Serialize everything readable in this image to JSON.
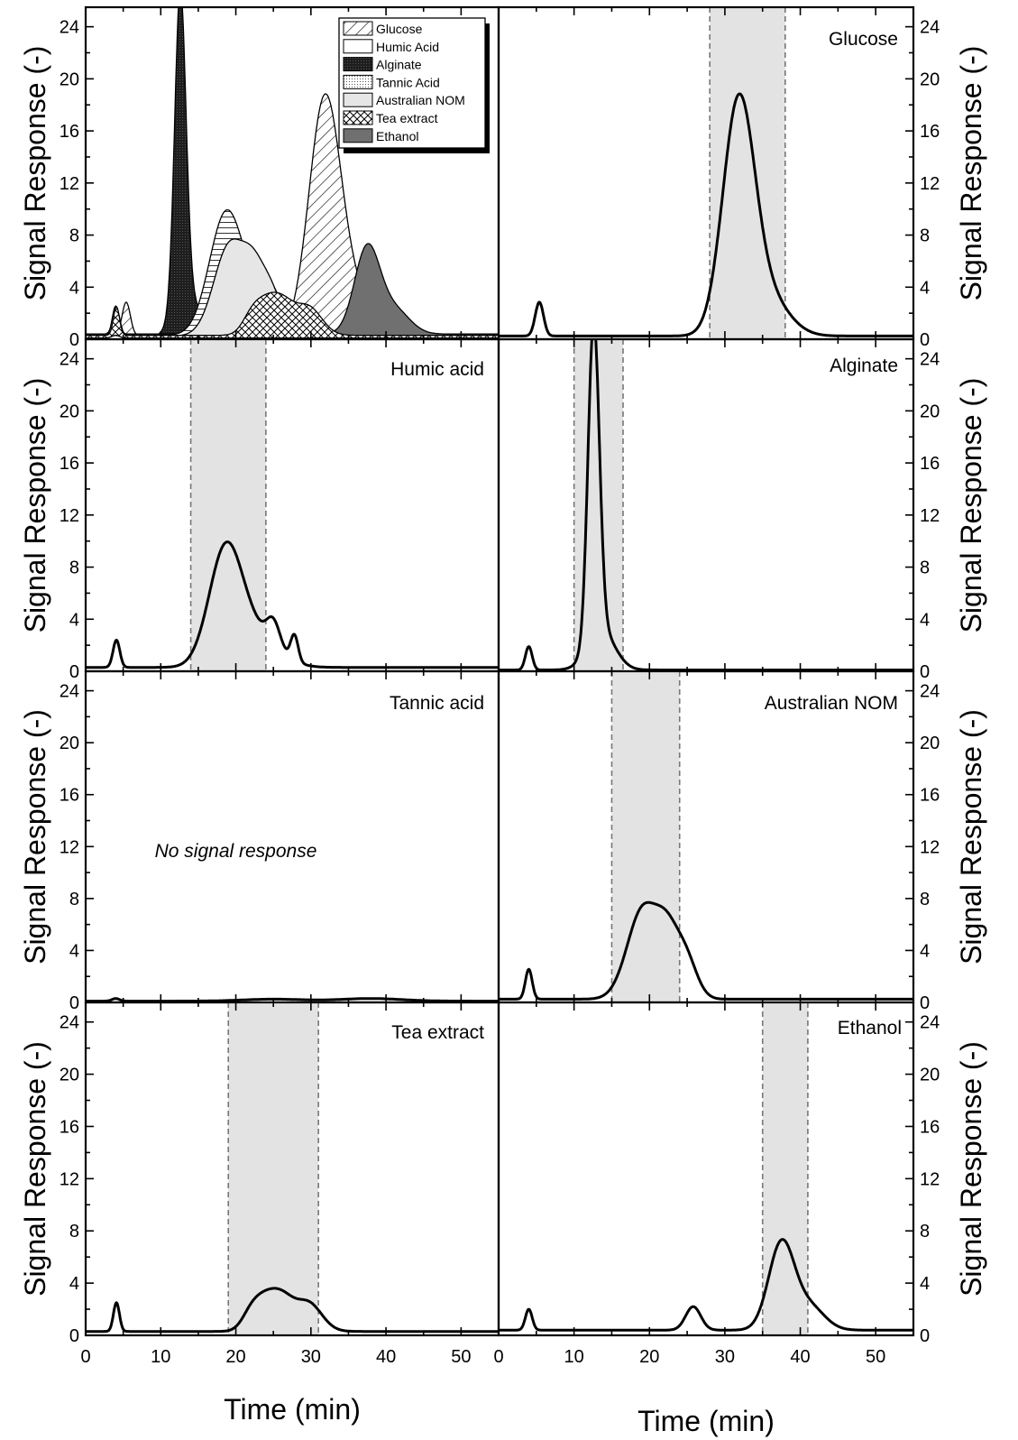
{
  "axes": {
    "y_title": "Signal Response (-)",
    "x_title": "Time (min)",
    "x_ticks": [
      "0",
      "10",
      "20",
      "30",
      "40",
      "50"
    ],
    "y_ticks": [
      "0",
      "4",
      "8",
      "12",
      "16",
      "20",
      "24"
    ]
  },
  "chart_data": [
    {
      "type": "area",
      "panel": "overlay",
      "xlim": [
        0,
        55
      ],
      "ylim": [
        0,
        25.5
      ],
      "legend_position": "top-right",
      "legend": [
        "Glucose",
        "Humic Acid",
        "Alginate",
        "Tannic Acid",
        "Australian NOM",
        "Tea extract",
        "Ethanol"
      ],
      "series": [
        {
          "name": "Glucose",
          "peaks": [
            [
              5.4,
              2.6,
              0.55
            ],
            [
              31.8,
              17.3,
              2.1
            ],
            [
              35.5,
              3.0,
              2.8
            ]
          ],
          "baseline": 0.25
        },
        {
          "name": "Humic Acid",
          "peaks": [
            [
              4.1,
              2.1,
              0.45
            ],
            [
              18.6,
              8.5,
              2.2
            ],
            [
              22.5,
              2.5,
              3.0
            ],
            [
              25.0,
              1.9,
              0.9
            ],
            [
              27.8,
              2.0,
              0.5
            ]
          ],
          "baseline": 0.3
        },
        {
          "name": "Alginate",
          "peaks": [
            [
              4.0,
              1.8,
              0.45
            ],
            [
              12.6,
              24.3,
              0.75
            ],
            [
              13.6,
              3.0,
              1.8
            ]
          ],
          "baseline": 0.1
        },
        {
          "name": "Tannic Acid",
          "peaks": [
            [
              4.0,
              0.2,
              0.5
            ]
          ],
          "baseline": 0.1
        },
        {
          "name": "Australian NOM",
          "peaks": [
            [
              4.0,
              2.3,
              0.45
            ],
            [
              19.2,
              7.0,
              2.1
            ],
            [
              22.3,
              3.5,
              1.4
            ],
            [
              24.7,
              3.3,
              1.5
            ]
          ],
          "baseline": 0.25
        },
        {
          "name": "Tea extract",
          "peaks": [
            [
              4.1,
              2.2,
              0.4
            ],
            [
              24.2,
              2.6,
              1.7
            ],
            [
              26.5,
              1.5,
              1.4
            ],
            [
              29.6,
              2.2,
              1.8
            ],
            [
              22.0,
              1.0,
              1.2
            ]
          ],
          "baseline": 0.3
        },
        {
          "name": "Ethanol",
          "peaks": [
            [
              4.0,
              1.6,
              0.45
            ],
            [
              25.8,
              1.8,
              1.0
            ],
            [
              37.5,
              6.6,
              1.7
            ],
            [
              41.2,
              1.8,
              2.0
            ]
          ],
          "baseline": 0.4
        }
      ]
    },
    {
      "type": "line",
      "panel": "Glucose",
      "xlim": [
        0,
        55
      ],
      "ylim": [
        0,
        25.5
      ],
      "shaded_window": [
        28,
        38
      ],
      "series": [
        {
          "peaks": [
            [
              5.4,
              2.6,
              0.55
            ],
            [
              31.8,
              17.3,
              2.1
            ],
            [
              35.5,
              3.0,
              2.8
            ]
          ],
          "baseline": 0.25
        }
      ]
    },
    {
      "type": "line",
      "panel": "Humic acid",
      "xlim": [
        0,
        55
      ],
      "ylim": [
        0,
        25.5
      ],
      "shaded_window": [
        14,
        24
      ],
      "series": [
        {
          "peaks": [
            [
              4.1,
              2.1,
              0.45
            ],
            [
              18.6,
              8.5,
              2.2
            ],
            [
              22.5,
              2.5,
              3.0
            ],
            [
              25.0,
              1.9,
              0.9
            ],
            [
              27.8,
              2.0,
              0.5
            ]
          ],
          "baseline": 0.3
        }
      ]
    },
    {
      "type": "line",
      "panel": "Alginate",
      "xlim": [
        0,
        55
      ],
      "ylim": [
        0,
        25.5
      ],
      "shaded_window": [
        10,
        16.5
      ],
      "series": [
        {
          "peaks": [
            [
              4.0,
              1.8,
              0.45
            ],
            [
              12.6,
              24.3,
              0.75
            ],
            [
              13.6,
              3.0,
              1.8
            ]
          ],
          "baseline": 0.1
        }
      ]
    },
    {
      "type": "line",
      "panel": "Tannic acid",
      "xlim": [
        0,
        55
      ],
      "ylim": [
        0,
        25.5
      ],
      "annotation": "No signal response",
      "series": [
        {
          "peaks": [
            [
              4.0,
              0.2,
              0.5
            ],
            [
              25.0,
              0.15,
              4.0
            ],
            [
              38.0,
              0.2,
              4.0
            ]
          ],
          "baseline": 0.1
        }
      ]
    },
    {
      "type": "line",
      "panel": "Australian NOM",
      "xlim": [
        0,
        55
      ],
      "ylim": [
        0,
        25.5
      ],
      "shaded_window": [
        15,
        24
      ],
      "series": [
        {
          "peaks": [
            [
              4.0,
              2.3,
              0.45
            ],
            [
              19.2,
              7.0,
              2.1
            ],
            [
              22.3,
              3.5,
              1.4
            ],
            [
              24.7,
              3.3,
              1.5
            ]
          ],
          "baseline": 0.25
        }
      ]
    },
    {
      "type": "line",
      "panel": "Tea extract",
      "xlim": [
        0,
        55
      ],
      "ylim": [
        0,
        25.5
      ],
      "shaded_window": [
        19,
        31
      ],
      "series": [
        {
          "peaks": [
            [
              4.1,
              2.2,
              0.4
            ],
            [
              24.2,
              2.6,
              1.7
            ],
            [
              26.5,
              1.5,
              1.4
            ],
            [
              29.6,
              2.2,
              1.8
            ],
            [
              22.0,
              1.0,
              1.2
            ]
          ],
          "baseline": 0.3
        }
      ]
    },
    {
      "type": "line",
      "panel": "Ethanol",
      "xlim": [
        0,
        55
      ],
      "ylim": [
        0,
        25.5
      ],
      "shaded_window": [
        35,
        41
      ],
      "series": [
        {
          "peaks": [
            [
              4.0,
              1.6,
              0.45
            ],
            [
              25.8,
              1.8,
              1.0
            ],
            [
              37.5,
              6.6,
              1.7
            ],
            [
              41.2,
              1.8,
              2.0
            ]
          ],
          "baseline": 0.4
        }
      ]
    }
  ],
  "style": {
    "line_color": "#000000",
    "shade_color": "#e3e3e3",
    "window_line_color": "#777777",
    "alginate_fill": "#2a2a2a",
    "ethanol_fill": "#707070",
    "nom_fill": "#e6e6e6"
  }
}
